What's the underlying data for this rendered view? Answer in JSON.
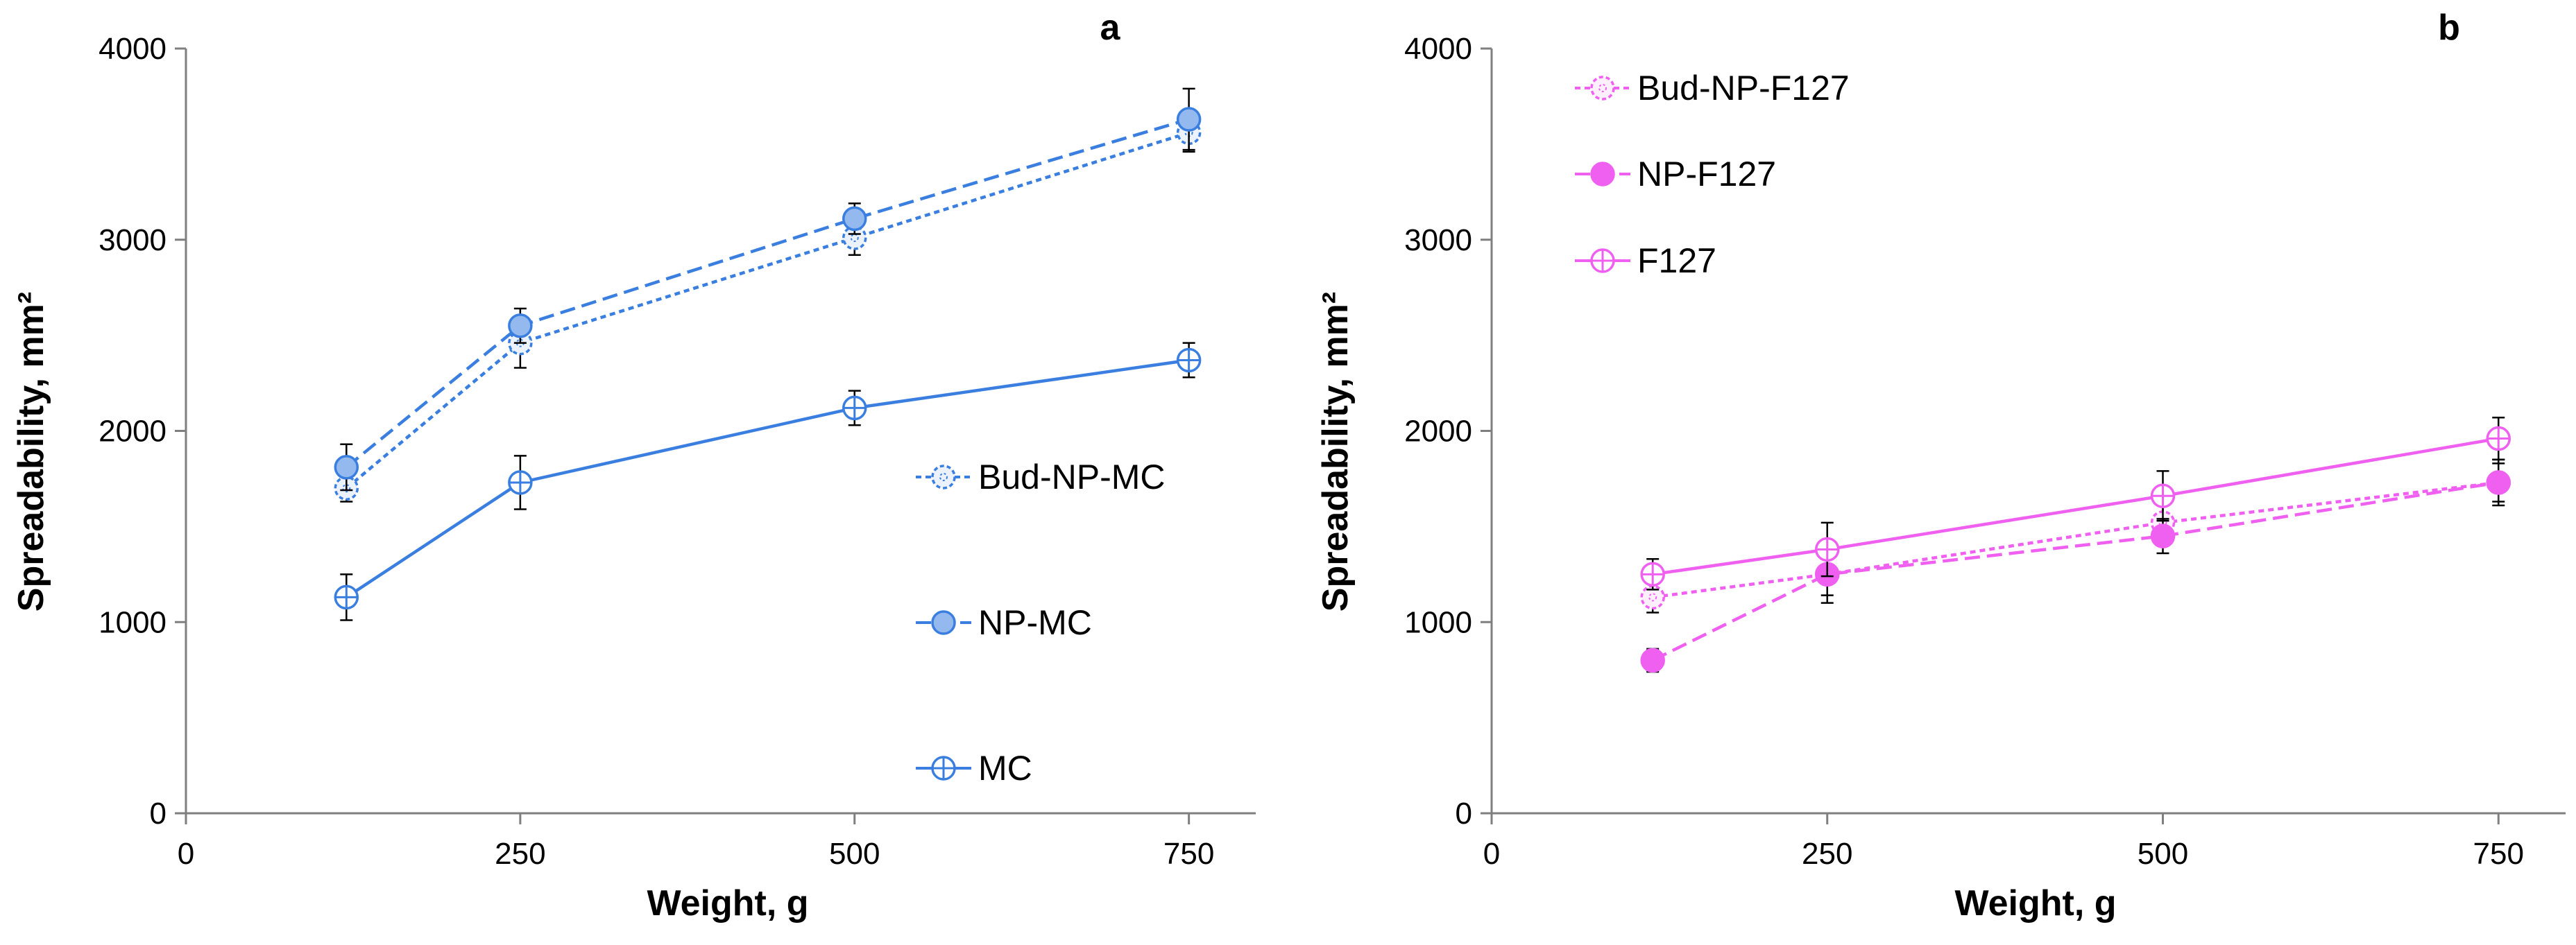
{
  "chart_data": [
    {
      "type": "line",
      "panel_label": "a",
      "xlabel": "Weight, g",
      "ylabel": "Spreadability, mm²",
      "xlim": [
        0,
        800
      ],
      "ylim": [
        0,
        4000
      ],
      "xticks": [
        0,
        250,
        500,
        750
      ],
      "yticks": [
        0,
        1000,
        2000,
        3000,
        4000
      ],
      "grid": false,
      "legend_position": "right",
      "x": [
        120,
        250,
        500,
        750
      ],
      "series": [
        {
          "name": "Bud-NP-MC",
          "values": [
            1700,
            2460,
            3010,
            3560
          ],
          "errors": [
            70,
            130,
            90,
            100
          ],
          "color": "#3a7fe0",
          "line_style": "dotted",
          "marker": "open-dotted"
        },
        {
          "name": "NP-MC",
          "values": [
            1810,
            2550,
            3110,
            3630
          ],
          "errors": [
            120,
            90,
            80,
            160
          ],
          "color": "#3a7fe0",
          "line_style": "dashed",
          "marker": "filled-light"
        },
        {
          "name": "MC",
          "values": [
            1130,
            1730,
            2120,
            2370
          ],
          "errors": [
            120,
            140,
            90,
            90
          ],
          "color": "#3a7fe0",
          "line_style": "solid",
          "marker": "open"
        }
      ]
    },
    {
      "type": "line",
      "panel_label": "b",
      "xlabel": "Weight, g",
      "ylabel": "Spreadability, mm²",
      "xlim": [
        0,
        800
      ],
      "ylim": [
        0,
        4000
      ],
      "xticks": [
        0,
        250,
        500,
        750
      ],
      "yticks": [
        0,
        1000,
        2000,
        3000,
        4000
      ],
      "grid": false,
      "legend_position": "top-left",
      "x": [
        120,
        250,
        500,
        750
      ],
      "series": [
        {
          "name": "Bud-NP-F127",
          "values": [
            1130,
            1250,
            1520,
            1730
          ],
          "errors": [
            80,
            110,
            100,
            100
          ],
          "color": "#f060f0",
          "line_style": "dotted",
          "marker": "open-dotted"
        },
        {
          "name": "NP-F127",
          "values": [
            800,
            1250,
            1450,
            1730
          ],
          "errors": [
            60,
            150,
            90,
            120
          ],
          "color": "#f060f0",
          "line_style": "dashed",
          "marker": "filled"
        },
        {
          "name": "F127",
          "values": [
            1250,
            1380,
            1660,
            1960
          ],
          "errors": [
            80,
            140,
            130,
            110
          ],
          "color": "#f060f0",
          "line_style": "solid",
          "marker": "open"
        }
      ]
    }
  ]
}
